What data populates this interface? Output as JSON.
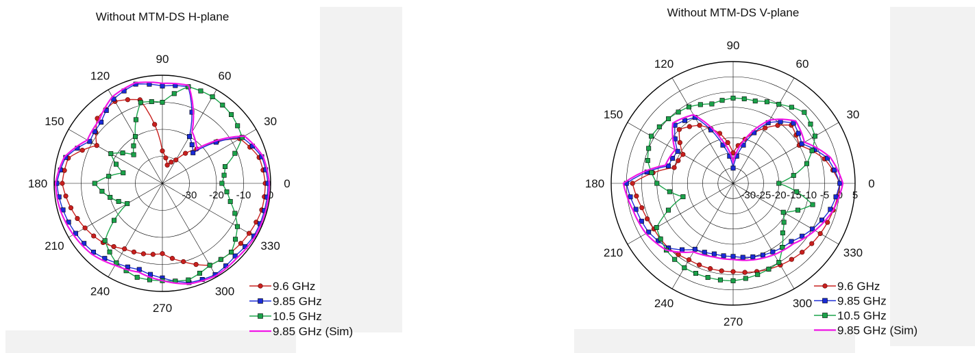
{
  "chart_data": [
    {
      "type": "polar-line",
      "title": "Without MTM-DS H-plane",
      "angle_labels": [
        "0",
        "30",
        "60",
        "90",
        "120",
        "150",
        "180",
        "210",
        "240",
        "270",
        "300",
        "330"
      ],
      "r_tick_labels": [
        "-30",
        "-20",
        "-10",
        "0"
      ],
      "r_range": [
        -40,
        0
      ],
      "grid": true,
      "legend_position": "bottom-right",
      "series": [
        {
          "name": "9.6 GHz",
          "color": "#c8201e",
          "marker": "circle",
          "theta": [
            0,
            15,
            30,
            45,
            60,
            75,
            90,
            105,
            120,
            135,
            150,
            165,
            180,
            195,
            210,
            225,
            240,
            255,
            270,
            285,
            300,
            315,
            330,
            345,
            360
          ],
          "r": [
            -2,
            -3,
            -7,
            -22,
            -30,
            -33,
            -28,
            -8,
            -5,
            -6,
            -12,
            -4,
            -3,
            -5,
            -7,
            -9,
            -12,
            -13,
            -14,
            -10,
            -5,
            -4,
            -3,
            -2,
            -2
          ]
        },
        {
          "name": "9.85 GHz",
          "color": "#1a2bd6",
          "marker": "square",
          "theta": [
            0,
            15,
            30,
            45,
            60,
            75,
            90,
            105,
            120,
            135,
            150,
            165,
            180,
            195,
            210,
            225,
            240,
            255,
            270,
            285,
            300,
            315,
            330,
            345,
            360
          ],
          "r": [
            -1,
            -2,
            -6,
            -24,
            -20,
            -3,
            -4,
            -2,
            -4,
            -8,
            -9,
            -3,
            -1,
            -2,
            -3,
            -4,
            -6,
            -7,
            -5,
            -2,
            -1,
            -2,
            -1,
            -1,
            -1
          ]
        },
        {
          "name": "10.5 GHz",
          "color": "#1ba34a",
          "marker": "square",
          "theta": [
            0,
            15,
            30,
            45,
            60,
            75,
            90,
            105,
            120,
            135,
            150,
            165,
            180,
            195,
            210,
            225,
            240,
            255,
            270,
            285,
            300,
            315,
            330,
            345,
            360
          ],
          "r": [
            -18,
            -16,
            -6,
            -4,
            -3,
            -3,
            -10,
            -9,
            -20,
            -25,
            -18,
            -25,
            -15,
            -20,
            -25,
            -10,
            -6,
            -4,
            -4,
            -3,
            -5,
            -4,
            -8,
            -14,
            -18
          ]
        },
        {
          "name": "9.85 GHz (Sim)",
          "color": "#f015e6",
          "marker": "none",
          "theta": [
            0,
            15,
            30,
            45,
            60,
            75,
            90,
            105,
            120,
            135,
            150,
            165,
            180,
            195,
            210,
            225,
            240,
            255,
            270,
            285,
            300,
            315,
            330,
            345,
            360
          ],
          "r": [
            -0.5,
            -1.5,
            -5,
            -22,
            -18,
            -2.5,
            -3,
            -1.5,
            -3,
            -7,
            -8,
            -2.5,
            -0.5,
            -1,
            -2,
            -3,
            -5,
            -6,
            -4,
            -1.5,
            -0.5,
            -1,
            -0.5,
            -0.5,
            -0.5
          ]
        }
      ]
    },
    {
      "type": "polar-line",
      "title": "Without MTM-DS V-plane",
      "angle_labels": [
        "0",
        "30",
        "60",
        "90",
        "120",
        "150",
        "180",
        "210",
        "240",
        "270",
        "300",
        "330"
      ],
      "r_tick_labels": [
        "-30",
        "-25",
        "-20",
        "-15",
        "-10",
        "-5",
        "0",
        "5"
      ],
      "r_range": [
        -35,
        5
      ],
      "grid": true,
      "legend_position": "bottom-right",
      "series": [
        {
          "name": "9.6 GHz",
          "color": "#c8201e",
          "marker": "circle",
          "theta": [
            0,
            15,
            30,
            45,
            60,
            75,
            90,
            105,
            120,
            135,
            150,
            165,
            180,
            195,
            210,
            225,
            240,
            255,
            270,
            285,
            300,
            315,
            330,
            345,
            360
          ],
          "r": [
            0,
            -4,
            -10,
            -8,
            -14,
            -20,
            -25,
            -18,
            -13,
            -10,
            -16,
            -15,
            -2,
            -4,
            -5,
            -5,
            -6,
            -6,
            -6,
            -5,
            -4,
            -3,
            -2,
            -1,
            0
          ]
        },
        {
          "name": "9.85 GHz",
          "color": "#1a2bd6",
          "marker": "square",
          "theta": [
            0,
            15,
            30,
            45,
            60,
            75,
            90,
            105,
            120,
            135,
            150,
            165,
            180,
            195,
            210,
            225,
            240,
            255,
            270,
            285,
            300,
            315,
            330,
            345,
            360
          ],
          "r": [
            0,
            -3,
            -9,
            -7,
            -12,
            -22,
            -30,
            -22,
            -10,
            -8,
            -14,
            -13,
            0,
            -2,
            -3,
            -5,
            -10,
            -11,
            -11,
            -10,
            -9,
            -8,
            -5,
            -2,
            0
          ]
        },
        {
          "name": "10.5 GHz",
          "color": "#1ba34a",
          "marker": "square",
          "theta": [
            0,
            15,
            30,
            45,
            60,
            75,
            90,
            105,
            120,
            135,
            150,
            165,
            180,
            195,
            210,
            225,
            240,
            255,
            270,
            285,
            300,
            315,
            330,
            345,
            360
          ],
          "r": [
            -20,
            -10,
            -4,
            -2,
            -5,
            -7,
            -7,
            -8,
            -6,
            -5,
            -4,
            -6,
            -10,
            -18,
            -6,
            -4,
            -3,
            -3,
            -3,
            -4,
            -5,
            -12,
            -16,
            -8,
            -20
          ]
        },
        {
          "name": "9.85 GHz (Sim)",
          "color": "#f015e6",
          "marker": "none",
          "theta": [
            0,
            15,
            30,
            45,
            60,
            75,
            90,
            105,
            120,
            135,
            150,
            165,
            180,
            195,
            210,
            225,
            240,
            255,
            270,
            285,
            300,
            315,
            330,
            345,
            360
          ],
          "r": [
            1,
            -2,
            -8,
            -6,
            -11,
            -20,
            -28,
            -20,
            -9,
            -7,
            -13,
            -12,
            1,
            -1,
            -2,
            -4,
            -9,
            -10,
            -10,
            -9,
            -8,
            -7,
            -4,
            -1,
            1
          ]
        }
      ]
    }
  ]
}
